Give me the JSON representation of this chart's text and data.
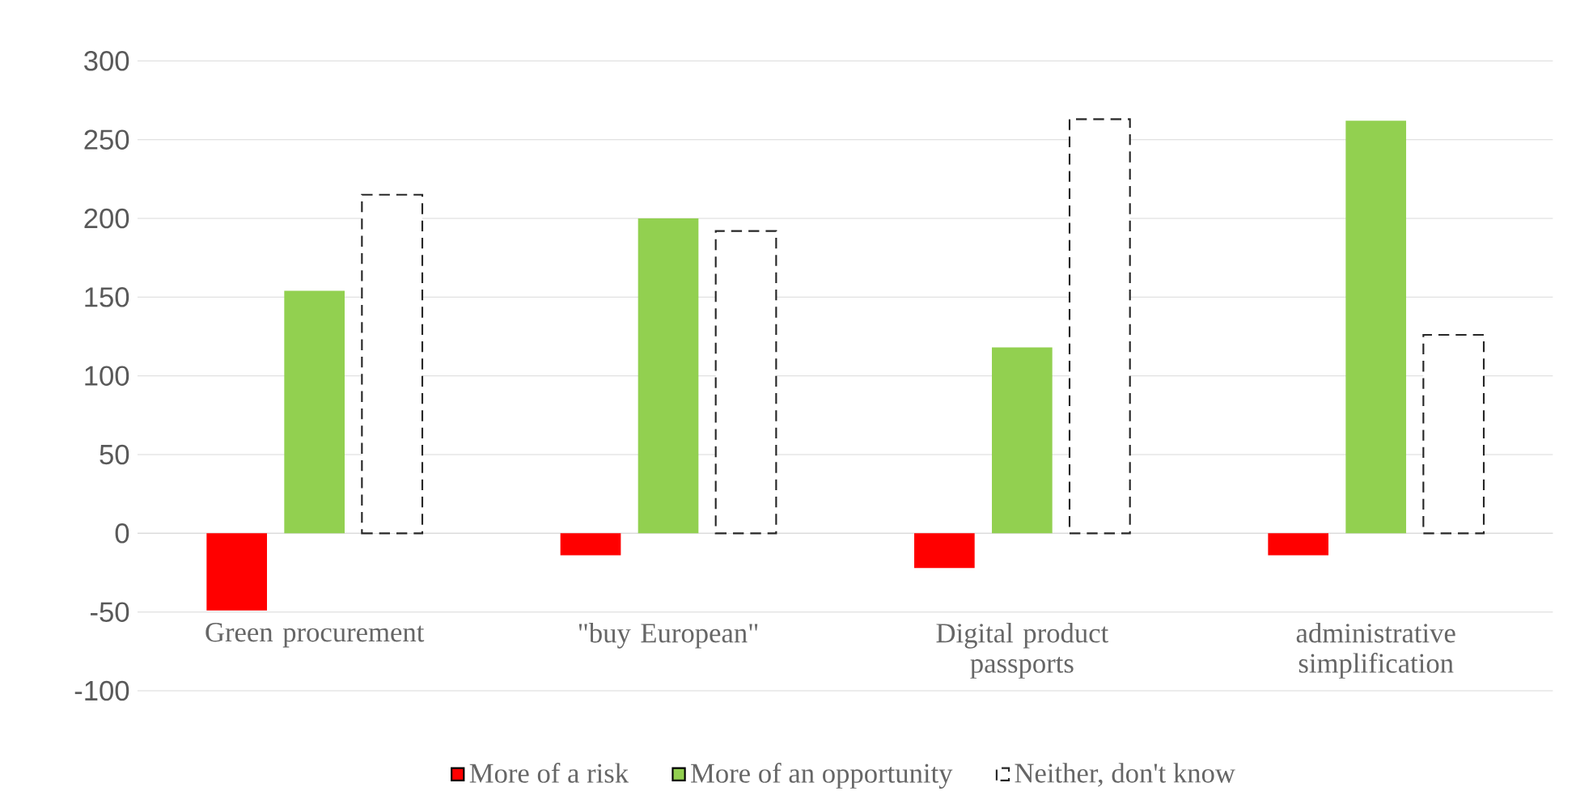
{
  "chart_data": {
    "type": "bar",
    "categories": [
      "Green procurement",
      "\"buy European\"",
      "Digital product passports",
      "administrative simplification"
    ],
    "series": [
      {
        "name": "More of a risk",
        "color": "#ff0000",
        "values": [
          -49,
          -14,
          -22,
          -14
        ]
      },
      {
        "name": "More of an opportunity",
        "color": "#92d050",
        "values": [
          154,
          200,
          118,
          262
        ]
      },
      {
        "name": "Neither, don't know",
        "color": "#ffffff",
        "line_style": "dashed",
        "values": [
          215,
          192,
          263,
          126
        ]
      }
    ],
    "ylim": [
      -100,
      300
    ],
    "yticks": [
      -100,
      -50,
      0,
      50,
      100,
      150,
      200,
      250,
      300
    ],
    "grid": "y",
    "legend": "bottom"
  }
}
